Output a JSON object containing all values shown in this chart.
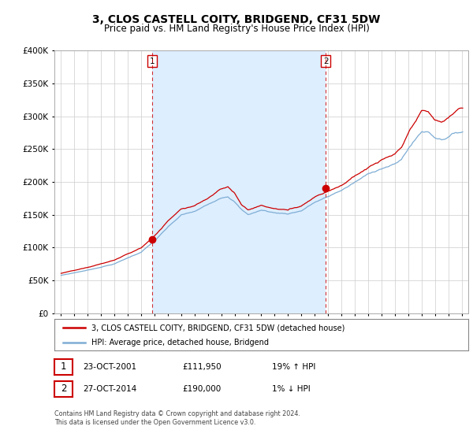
{
  "title": "3, CLOS CASTELL COITY, BRIDGEND, CF31 5DW",
  "subtitle": "Price paid vs. HM Land Registry's House Price Index (HPI)",
  "legend_entry1": "3, CLOS CASTELL COITY, BRIDGEND, CF31 5DW (detached house)",
  "legend_entry2": "HPI: Average price, detached house, Bridgend",
  "transaction1_date": "23-OCT-2001",
  "transaction1_price": "£111,950",
  "transaction1_hpi": "19% ↑ HPI",
  "transaction2_date": "27-OCT-2014",
  "transaction2_price": "£190,000",
  "transaction2_hpi": "1% ↓ HPI",
  "footnote": "Contains HM Land Registry data © Crown copyright and database right 2024.\nThis data is licensed under the Open Government Licence v3.0.",
  "hpi_color": "#7eadd4",
  "price_color": "#cc0000",
  "shade_color": "#ddeeff",
  "marker1_x": 2001.81,
  "marker1_y": 111950,
  "marker2_x": 2014.82,
  "marker2_y": 190000,
  "ylim": [
    0,
    400000
  ],
  "xlim_start": 1994.5,
  "xlim_end": 2025.5,
  "grid_color": "#cccccc",
  "title_fontsize": 10,
  "subtitle_fontsize": 8.5
}
